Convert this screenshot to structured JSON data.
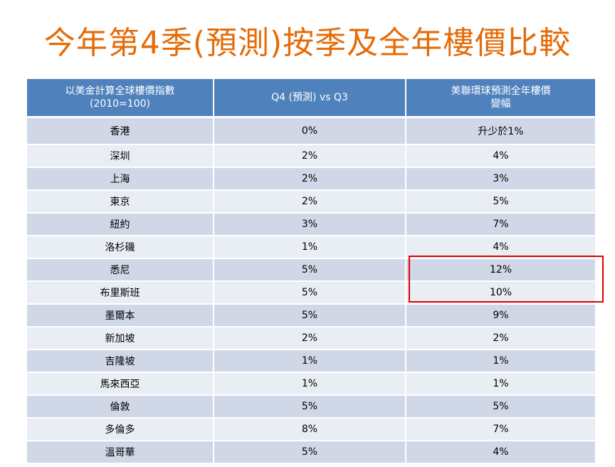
{
  "title": "今年第4季(預測)按季及全年樓價比較",
  "headers": {
    "col1_line1": "以美金計算全球樓價指數",
    "col1_line2": "(2010=100)",
    "col2": "Q4 (預測) vs Q3",
    "col3_line1": "美聯環球預測全年樓價",
    "col3_line2": "變幅"
  },
  "rows": [
    {
      "city": "香港",
      "q4": "0%",
      "annual": "升少於1%"
    },
    {
      "city": "深圳",
      "q4": "2%",
      "annual": "4%"
    },
    {
      "city": "上海",
      "q4": "2%",
      "annual": "3%"
    },
    {
      "city": "東京",
      "q4": "2%",
      "annual": "5%"
    },
    {
      "city": "紐約",
      "q4": "3%",
      "annual": "7%"
    },
    {
      "city": "洛杉磯",
      "q4": "1%",
      "annual": "4%"
    },
    {
      "city": "悉尼",
      "q4": "5%",
      "annual": "12%"
    },
    {
      "city": "布里斯班",
      "q4": "5%",
      "annual": "10%"
    },
    {
      "city": "墨爾本",
      "q4": "5%",
      "annual": "9%"
    },
    {
      "city": "新加坡",
      "q4": "2%",
      "annual": "2%"
    },
    {
      "city": "吉隆坡",
      "q4": "1%",
      "annual": "1%"
    },
    {
      "city": "馬來西亞",
      "q4": "1%",
      "annual": "1%"
    },
    {
      "city": "倫敦",
      "q4": "5%",
      "annual": "5%"
    },
    {
      "city": "多倫多",
      "q4": "8%",
      "annual": "7%"
    },
    {
      "city": "溫哥華",
      "q4": "5%",
      "annual": "4%"
    }
  ],
  "colors": {
    "title": "#e46c0a",
    "header_bg": "#4f81bd",
    "row_dark": "#d0d8e8",
    "row_light": "#e9edf4",
    "highlight": "#e00000"
  }
}
